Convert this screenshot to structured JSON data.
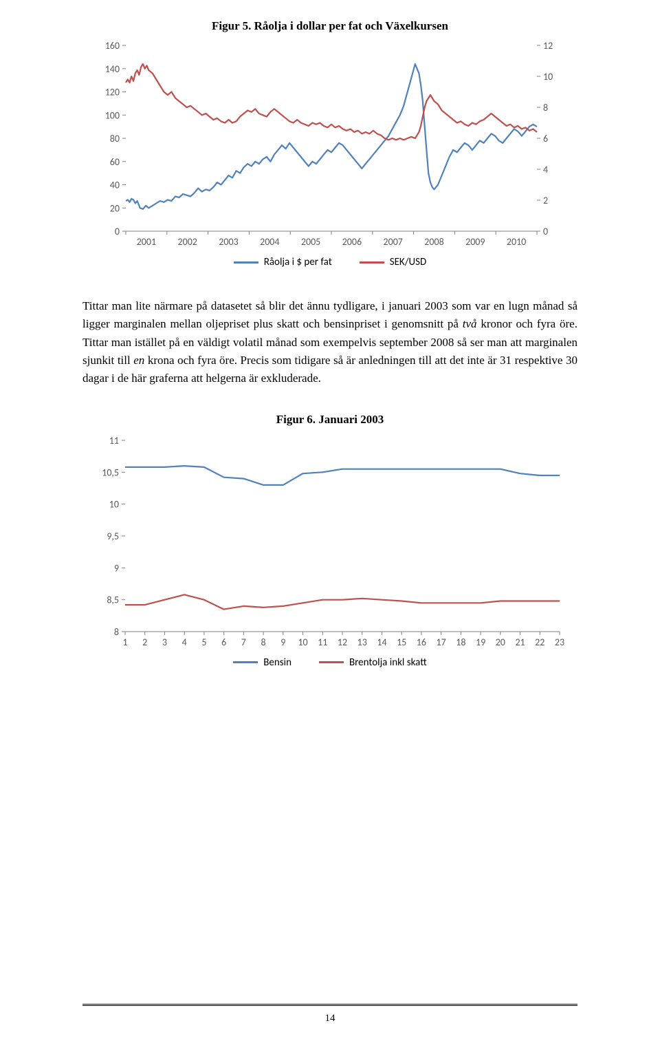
{
  "figure5": {
    "title": "Figur 5. Råolja i dollar per fat och Växelkursen",
    "type": "line",
    "background_color": "#ffffff",
    "left_axis": {
      "min": 0,
      "max": 160,
      "tick_step": 20,
      "ticks": [
        0,
        20,
        40,
        60,
        80,
        100,
        120,
        140,
        160
      ]
    },
    "right_axis": {
      "min": 0,
      "max": 12,
      "tick_step": 2,
      "ticks": [
        0,
        2,
        4,
        6,
        8,
        10,
        12
      ]
    },
    "x_axis": {
      "labels": [
        "2001",
        "2002",
        "2003",
        "2004",
        "2005",
        "2006",
        "2007",
        "2008",
        "2009",
        "2010"
      ]
    },
    "tick_color": "#808080",
    "axis_line_color": "#808080",
    "label_color": "#595959",
    "label_fontsize": 14,
    "line_width": 2.2,
    "series": [
      {
        "name": "Råolja i $ per fat",
        "color": "#4f81bd",
        "axis": "left",
        "data": [
          [
            0,
            26
          ],
          [
            2,
            27
          ],
          [
            4,
            25
          ],
          [
            6,
            28
          ],
          [
            8,
            27
          ],
          [
            10,
            24
          ],
          [
            12,
            26
          ],
          [
            15,
            20
          ],
          [
            18,
            19
          ],
          [
            21,
            22
          ],
          [
            24,
            20
          ],
          [
            28,
            22
          ],
          [
            32,
            24
          ],
          [
            36,
            26
          ],
          [
            40,
            25
          ],
          [
            44,
            27
          ],
          [
            48,
            26
          ],
          [
            52,
            30
          ],
          [
            56,
            29
          ],
          [
            60,
            32
          ],
          [
            64,
            31
          ],
          [
            68,
            30
          ],
          [
            72,
            33
          ],
          [
            76,
            37
          ],
          [
            80,
            34
          ],
          [
            84,
            36
          ],
          [
            88,
            35
          ],
          [
            92,
            38
          ],
          [
            96,
            42
          ],
          [
            100,
            40
          ],
          [
            104,
            44
          ],
          [
            108,
            48
          ],
          [
            112,
            46
          ],
          [
            116,
            52
          ],
          [
            120,
            50
          ],
          [
            124,
            55
          ],
          [
            128,
            58
          ],
          [
            132,
            56
          ],
          [
            136,
            60
          ],
          [
            140,
            58
          ],
          [
            144,
            62
          ],
          [
            148,
            64
          ],
          [
            152,
            60
          ],
          [
            156,
            66
          ],
          [
            160,
            70
          ],
          [
            164,
            74
          ],
          [
            168,
            71
          ],
          [
            172,
            76
          ],
          [
            176,
            72
          ],
          [
            180,
            68
          ],
          [
            184,
            64
          ],
          [
            188,
            60
          ],
          [
            192,
            56
          ],
          [
            196,
            60
          ],
          [
            200,
            58
          ],
          [
            204,
            62
          ],
          [
            208,
            66
          ],
          [
            212,
            70
          ],
          [
            216,
            68
          ],
          [
            220,
            72
          ],
          [
            224,
            76
          ],
          [
            228,
            74
          ],
          [
            232,
            70
          ],
          [
            236,
            66
          ],
          [
            240,
            62
          ],
          [
            244,
            58
          ],
          [
            248,
            54
          ],
          [
            252,
            58
          ],
          [
            256,
            62
          ],
          [
            260,
            66
          ],
          [
            264,
            70
          ],
          [
            268,
            74
          ],
          [
            272,
            78
          ],
          [
            276,
            82
          ],
          [
            280,
            88
          ],
          [
            284,
            94
          ],
          [
            288,
            100
          ],
          [
            292,
            108
          ],
          [
            296,
            120
          ],
          [
            300,
            132
          ],
          [
            304,
            144
          ],
          [
            306,
            140
          ],
          [
            308,
            136
          ],
          [
            310,
            126
          ],
          [
            312,
            112
          ],
          [
            314,
            90
          ],
          [
            316,
            70
          ],
          [
            318,
            50
          ],
          [
            320,
            42
          ],
          [
            322,
            38
          ],
          [
            324,
            36
          ],
          [
            328,
            40
          ],
          [
            332,
            48
          ],
          [
            336,
            56
          ],
          [
            340,
            64
          ],
          [
            344,
            70
          ],
          [
            348,
            68
          ],
          [
            352,
            72
          ],
          [
            356,
            76
          ],
          [
            360,
            74
          ],
          [
            364,
            70
          ],
          [
            368,
            74
          ],
          [
            372,
            78
          ],
          [
            376,
            76
          ],
          [
            380,
            80
          ],
          [
            384,
            84
          ],
          [
            388,
            82
          ],
          [
            392,
            78
          ],
          [
            396,
            76
          ],
          [
            400,
            80
          ],
          [
            404,
            84
          ],
          [
            408,
            88
          ],
          [
            412,
            86
          ],
          [
            416,
            82
          ],
          [
            420,
            86
          ],
          [
            424,
            90
          ],
          [
            428,
            92
          ],
          [
            432,
            90
          ]
        ]
      },
      {
        "name": "SEK/USD",
        "color": "#c0504d",
        "axis": "right",
        "data": [
          [
            0,
            9.6
          ],
          [
            2,
            9.8
          ],
          [
            4,
            9.6
          ],
          [
            6,
            10.0
          ],
          [
            8,
            9.7
          ],
          [
            10,
            10.2
          ],
          [
            12,
            10.4
          ],
          [
            14,
            10.1
          ],
          [
            16,
            10.6
          ],
          [
            18,
            10.8
          ],
          [
            20,
            10.5
          ],
          [
            22,
            10.7
          ],
          [
            24,
            10.4
          ],
          [
            28,
            10.2
          ],
          [
            32,
            9.8
          ],
          [
            36,
            9.4
          ],
          [
            40,
            9.0
          ],
          [
            44,
            8.8
          ],
          [
            48,
            9.0
          ],
          [
            52,
            8.6
          ],
          [
            56,
            8.4
          ],
          [
            60,
            8.2
          ],
          [
            64,
            8.0
          ],
          [
            68,
            8.1
          ],
          [
            72,
            7.9
          ],
          [
            76,
            7.7
          ],
          [
            80,
            7.5
          ],
          [
            84,
            7.6
          ],
          [
            88,
            7.4
          ],
          [
            92,
            7.2
          ],
          [
            96,
            7.3
          ],
          [
            100,
            7.1
          ],
          [
            104,
            7.0
          ],
          [
            108,
            7.2
          ],
          [
            112,
            7.0
          ],
          [
            116,
            7.1
          ],
          [
            120,
            7.4
          ],
          [
            124,
            7.6
          ],
          [
            128,
            7.8
          ],
          [
            132,
            7.7
          ],
          [
            136,
            7.9
          ],
          [
            140,
            7.6
          ],
          [
            144,
            7.5
          ],
          [
            148,
            7.4
          ],
          [
            152,
            7.7
          ],
          [
            156,
            7.9
          ],
          [
            160,
            7.7
          ],
          [
            164,
            7.5
          ],
          [
            168,
            7.3
          ],
          [
            172,
            7.1
          ],
          [
            176,
            7.0
          ],
          [
            180,
            7.2
          ],
          [
            184,
            7.0
          ],
          [
            188,
            6.9
          ],
          [
            192,
            6.8
          ],
          [
            196,
            7.0
          ],
          [
            200,
            6.9
          ],
          [
            204,
            7.0
          ],
          [
            208,
            6.8
          ],
          [
            212,
            6.7
          ],
          [
            216,
            6.9
          ],
          [
            220,
            6.7
          ],
          [
            224,
            6.8
          ],
          [
            228,
            6.6
          ],
          [
            232,
            6.5
          ],
          [
            236,
            6.6
          ],
          [
            240,
            6.4
          ],
          [
            244,
            6.5
          ],
          [
            248,
            6.3
          ],
          [
            252,
            6.4
          ],
          [
            256,
            6.3
          ],
          [
            260,
            6.5
          ],
          [
            264,
            6.3
          ],
          [
            268,
            6.2
          ],
          [
            272,
            6.0
          ],
          [
            276,
            5.9
          ],
          [
            280,
            6.0
          ],
          [
            284,
            5.9
          ],
          [
            288,
            6.0
          ],
          [
            292,
            5.9
          ],
          [
            296,
            6.0
          ],
          [
            300,
            6.1
          ],
          [
            304,
            6.0
          ],
          [
            306,
            6.2
          ],
          [
            308,
            6.4
          ],
          [
            310,
            6.8
          ],
          [
            312,
            7.4
          ],
          [
            314,
            8.0
          ],
          [
            316,
            8.4
          ],
          [
            318,
            8.6
          ],
          [
            320,
            8.8
          ],
          [
            322,
            8.6
          ],
          [
            324,
            8.4
          ],
          [
            328,
            8.2
          ],
          [
            332,
            7.8
          ],
          [
            336,
            7.6
          ],
          [
            340,
            7.4
          ],
          [
            344,
            7.2
          ],
          [
            348,
            7.0
          ],
          [
            352,
            7.1
          ],
          [
            356,
            6.9
          ],
          [
            360,
            6.8
          ],
          [
            364,
            7.0
          ],
          [
            368,
            6.9
          ],
          [
            372,
            7.1
          ],
          [
            376,
            7.2
          ],
          [
            380,
            7.4
          ],
          [
            384,
            7.6
          ],
          [
            388,
            7.4
          ],
          [
            392,
            7.2
          ],
          [
            396,
            7.0
          ],
          [
            400,
            6.8
          ],
          [
            404,
            6.9
          ],
          [
            408,
            6.7
          ],
          [
            412,
            6.8
          ],
          [
            416,
            6.6
          ],
          [
            420,
            6.7
          ],
          [
            424,
            6.5
          ],
          [
            428,
            6.6
          ],
          [
            432,
            6.4
          ]
        ]
      }
    ],
    "legend": [
      {
        "label": "Råolja i $ per fat",
        "color": "#4f81bd"
      },
      {
        "label": "SEK/USD",
        "color": "#c0504d"
      }
    ]
  },
  "body_html": "Tittar man lite närmare på datasetet så blir det ännu tydligare, i januari 2003 som var en lugn månad så ligger marginalen mellan oljepriset plus skatt och bensinpriset i genomsnitt på <i>två</i> kronor och fyra öre. Tittar man istället på en väldigt volatil månad som exempelvis september 2008 så ser man att marginalen sjunkit till <i>en</i> krona och fyra öre. Precis som tidigare så är anledningen till att det inte är 31 respektive 30 dagar i de här graferna att helgerna är exkluderade.",
  "figure6": {
    "title": "Figur 6. Januari 2003",
    "type": "line",
    "background_color": "#ffffff",
    "y_axis": {
      "min": 8,
      "max": 11,
      "tick_step": 0.5,
      "ticks": [
        8,
        8.5,
        9,
        9.5,
        10,
        10.5,
        11
      ],
      "tick_labels": [
        "8",
        "8,5",
        "9",
        "9,5",
        "10",
        "10,5",
        "11"
      ]
    },
    "x_axis": {
      "min": 1,
      "max": 23,
      "labels": [
        "1",
        "2",
        "3",
        "4",
        "5",
        "6",
        "7",
        "8",
        "9",
        "10",
        "11",
        "12",
        "13",
        "14",
        "15",
        "16",
        "17",
        "18",
        "19",
        "20",
        "21",
        "22",
        "23"
      ]
    },
    "tick_color": "#808080",
    "axis_line_color": "#808080",
    "label_color": "#595959",
    "label_fontsize": 14,
    "line_width": 2.2,
    "series": [
      {
        "name": "Bensin",
        "color": "#4f81bd",
        "data": [
          [
            1,
            10.58
          ],
          [
            2,
            10.58
          ],
          [
            3,
            10.58
          ],
          [
            4,
            10.6
          ],
          [
            5,
            10.58
          ],
          [
            6,
            10.42
          ],
          [
            7,
            10.4
          ],
          [
            8,
            10.3
          ],
          [
            9,
            10.3
          ],
          [
            10,
            10.48
          ],
          [
            11,
            10.5
          ],
          [
            12,
            10.55
          ],
          [
            13,
            10.55
          ],
          [
            14,
            10.55
          ],
          [
            15,
            10.55
          ],
          [
            16,
            10.55
          ],
          [
            17,
            10.55
          ],
          [
            18,
            10.55
          ],
          [
            19,
            10.55
          ],
          [
            20,
            10.55
          ],
          [
            21,
            10.48
          ],
          [
            22,
            10.45
          ],
          [
            23,
            10.45
          ]
        ]
      },
      {
        "name": "Brentolja inkl skatt",
        "color": "#c0504d",
        "data": [
          [
            1,
            8.42
          ],
          [
            2,
            8.42
          ],
          [
            3,
            8.5
          ],
          [
            4,
            8.58
          ],
          [
            5,
            8.5
          ],
          [
            6,
            8.35
          ],
          [
            7,
            8.4
          ],
          [
            8,
            8.38
          ],
          [
            9,
            8.4
          ],
          [
            10,
            8.45
          ],
          [
            11,
            8.5
          ],
          [
            12,
            8.5
          ],
          [
            13,
            8.52
          ],
          [
            14,
            8.5
          ],
          [
            15,
            8.48
          ],
          [
            16,
            8.45
          ],
          [
            17,
            8.45
          ],
          [
            18,
            8.45
          ],
          [
            19,
            8.45
          ],
          [
            20,
            8.48
          ],
          [
            21,
            8.48
          ],
          [
            22,
            8.48
          ],
          [
            23,
            8.48
          ]
        ]
      }
    ],
    "legend": [
      {
        "label": "Bensin",
        "color": "#4f81bd"
      },
      {
        "label": "Brentolja inkl skatt",
        "color": "#c0504d"
      }
    ]
  },
  "page_number": "14"
}
